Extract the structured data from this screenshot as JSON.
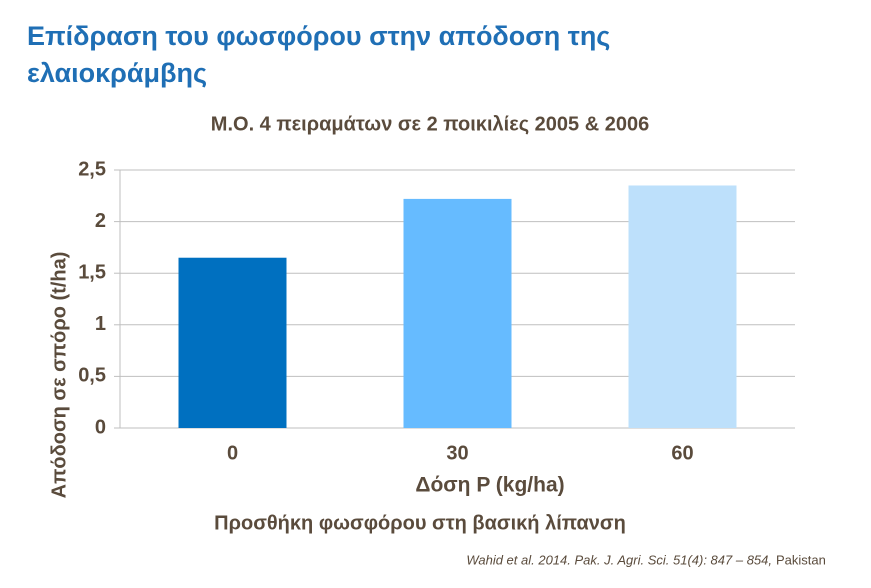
{
  "slide": {
    "heading": "Επίδραση του φωσφόρου στην απόδοση της ελαιοκράμβης",
    "note": "Προσθήκη φωσφόρου στη βασική λίπανση",
    "citation": "Wahid et al. 2014. Pak. J. Agri. Sci. 51(4): 847 – 854,",
    "citation_place": "Pakistan"
  },
  "chart_data": {
    "type": "bar",
    "title": "Μ.Ο. 4 πειραμάτων σε 2 ποικιλίες 2005 & 2006",
    "x_label": "Δόση P (kg/ha)",
    "y_label": "Απόδοση σε σπόρο (t/ha)",
    "categories": [
      "0",
      "30",
      "60"
    ],
    "values": [
      1.65,
      2.22,
      2.35
    ],
    "colors": [
      "#0070c0",
      "#66bbff",
      "#bde0fb"
    ],
    "ylim": [
      0,
      2.5
    ],
    "yticks": [
      0,
      {
        "value": 0.5,
        "label": "0,5"
      },
      1,
      {
        "value": 1.5,
        "label": "1,5"
      },
      2,
      {
        "value": 2.5,
        "label": "2,5"
      }
    ],
    "grid": true
  }
}
